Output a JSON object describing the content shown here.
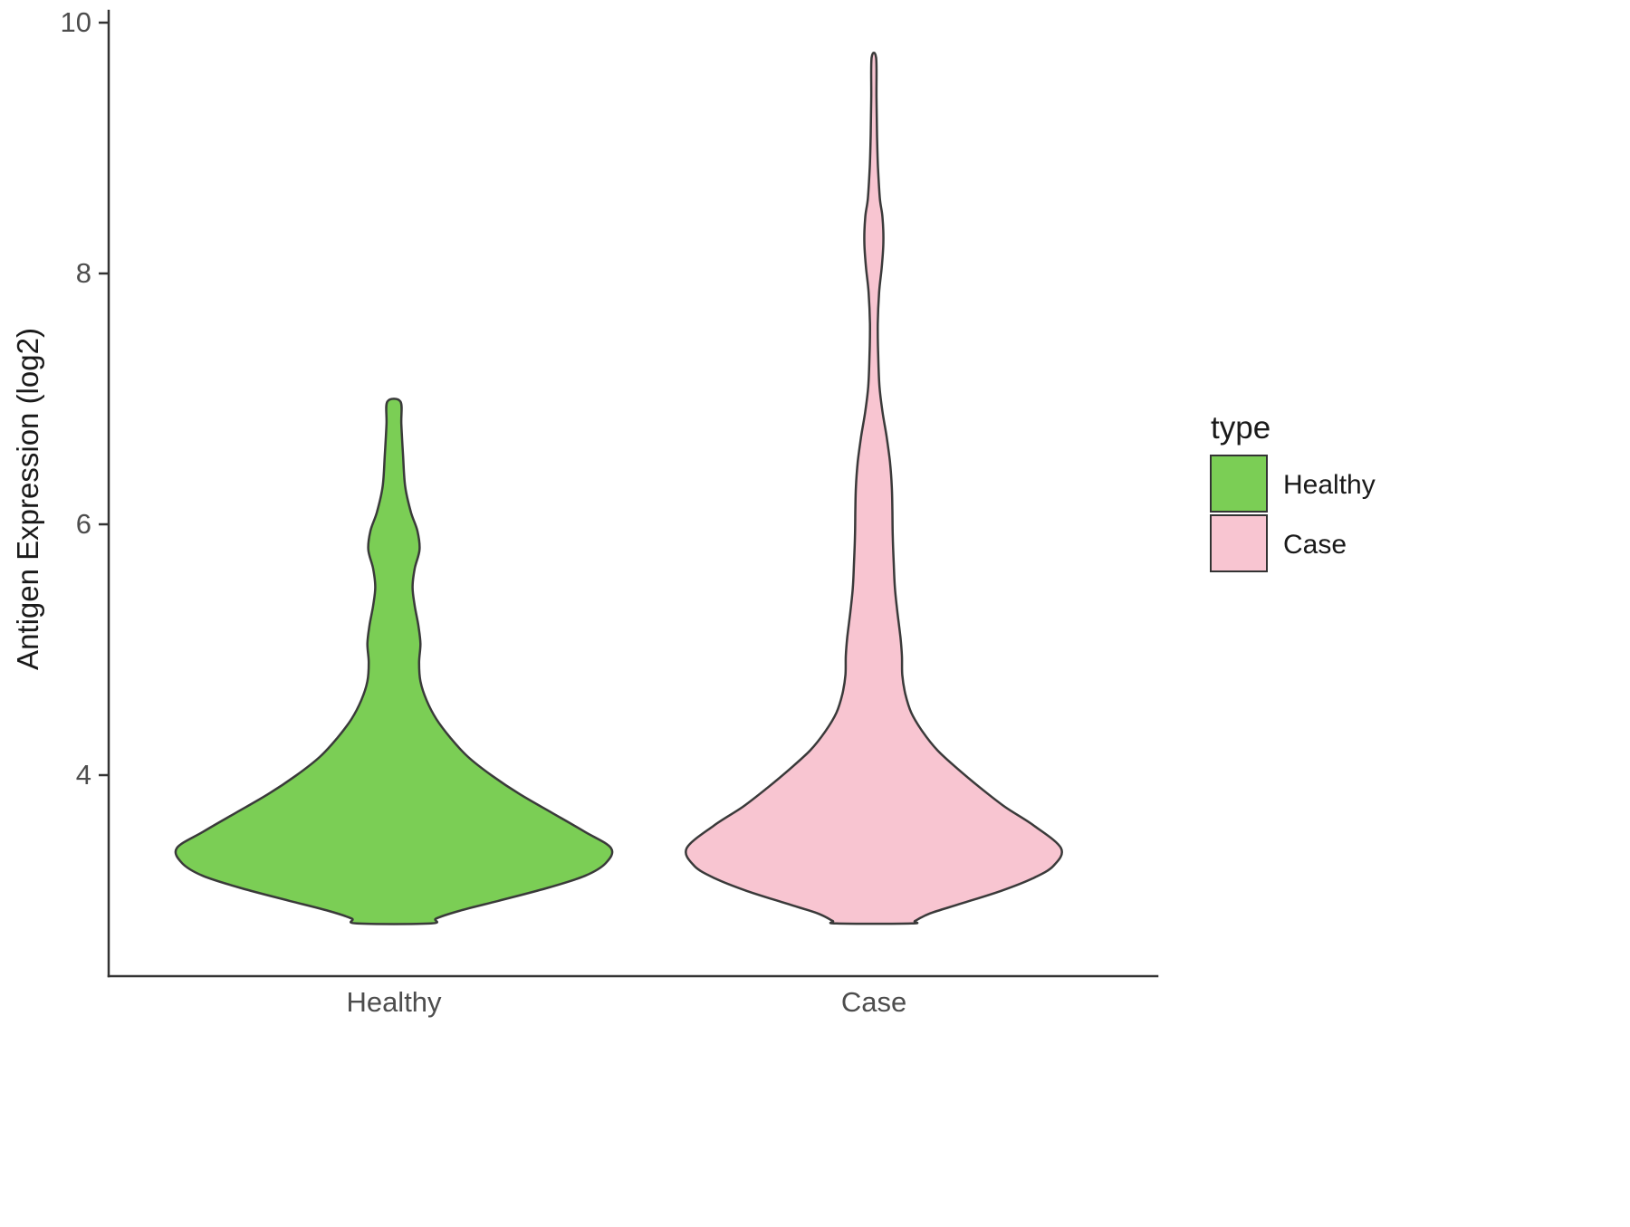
{
  "chart_data": {
    "type": "violin",
    "title": "",
    "xlabel": "",
    "ylabel": "Antigen Expression (log2)",
    "categories": [
      "Healthy",
      "Case"
    ],
    "ylim": [
      2.4,
      10
    ],
    "yticks": [
      4,
      6,
      8,
      10
    ],
    "ytick_labels": [
      "4",
      "6",
      "8",
      "10"
    ],
    "grid": "off",
    "background": "#ffffff",
    "outline_color": "#3a3a3a",
    "legend": {
      "title": "type",
      "position": "right",
      "entries": [
        {
          "label": "Healthy",
          "color": "#7bce55"
        },
        {
          "label": "Case",
          "color": "#f8c5d1"
        }
      ]
    },
    "series": [
      {
        "name": "Healthy",
        "color": "#7bce55",
        "value_range": [
          2.82,
          6.98
        ],
        "peak_density_at": 3.42,
        "width_scale": 0.905,
        "density_profile": [
          [
            6.98,
            0.03
          ],
          [
            6.8,
            0.034
          ],
          [
            6.55,
            0.042
          ],
          [
            6.3,
            0.052
          ],
          [
            6.1,
            0.078
          ],
          [
            5.95,
            0.108
          ],
          [
            5.8,
            0.118
          ],
          [
            5.65,
            0.096
          ],
          [
            5.5,
            0.086
          ],
          [
            5.35,
            0.096
          ],
          [
            5.2,
            0.112
          ],
          [
            5.05,
            0.122
          ],
          [
            4.9,
            0.116
          ],
          [
            4.75,
            0.122
          ],
          [
            4.6,
            0.15
          ],
          [
            4.45,
            0.195
          ],
          [
            4.3,
            0.26
          ],
          [
            4.15,
            0.34
          ],
          [
            4.0,
            0.45
          ],
          [
            3.85,
            0.58
          ],
          [
            3.7,
            0.73
          ],
          [
            3.55,
            0.88
          ],
          [
            3.42,
            1.0
          ],
          [
            3.3,
            0.975
          ],
          [
            3.2,
            0.88
          ],
          [
            3.1,
            0.7
          ],
          [
            3.0,
            0.48
          ],
          [
            2.92,
            0.3
          ],
          [
            2.86,
            0.195
          ],
          [
            2.82,
            0.17
          ]
        ]
      },
      {
        "name": "Case",
        "color": "#f8c5d1",
        "value_range": [
          2.82,
          9.72
        ],
        "peak_density_at": 3.42,
        "width_scale": 0.78,
        "density_profile": [
          [
            9.72,
            0.012
          ],
          [
            9.4,
            0.014
          ],
          [
            9.1,
            0.017
          ],
          [
            8.85,
            0.022
          ],
          [
            8.6,
            0.032
          ],
          [
            8.45,
            0.046
          ],
          [
            8.25,
            0.051
          ],
          [
            8.05,
            0.042
          ],
          [
            7.85,
            0.028
          ],
          [
            7.6,
            0.021
          ],
          [
            7.35,
            0.023
          ],
          [
            7.1,
            0.03
          ],
          [
            6.9,
            0.046
          ],
          [
            6.7,
            0.068
          ],
          [
            6.5,
            0.086
          ],
          [
            6.3,
            0.096
          ],
          [
            6.1,
            0.099
          ],
          [
            5.9,
            0.101
          ],
          [
            5.7,
            0.106
          ],
          [
            5.5,
            0.112
          ],
          [
            5.3,
            0.126
          ],
          [
            5.1,
            0.142
          ],
          [
            4.95,
            0.15
          ],
          [
            4.8,
            0.152
          ],
          [
            4.65,
            0.168
          ],
          [
            4.5,
            0.2
          ],
          [
            4.35,
            0.26
          ],
          [
            4.2,
            0.34
          ],
          [
            4.05,
            0.45
          ],
          [
            3.9,
            0.57
          ],
          [
            3.75,
            0.7
          ],
          [
            3.6,
            0.855
          ],
          [
            3.42,
            1.0
          ],
          [
            3.28,
            0.96
          ],
          [
            3.18,
            0.85
          ],
          [
            3.08,
            0.68
          ],
          [
            2.98,
            0.47
          ],
          [
            2.9,
            0.3
          ],
          [
            2.84,
            0.22
          ],
          [
            2.82,
            0.2
          ]
        ]
      }
    ]
  }
}
